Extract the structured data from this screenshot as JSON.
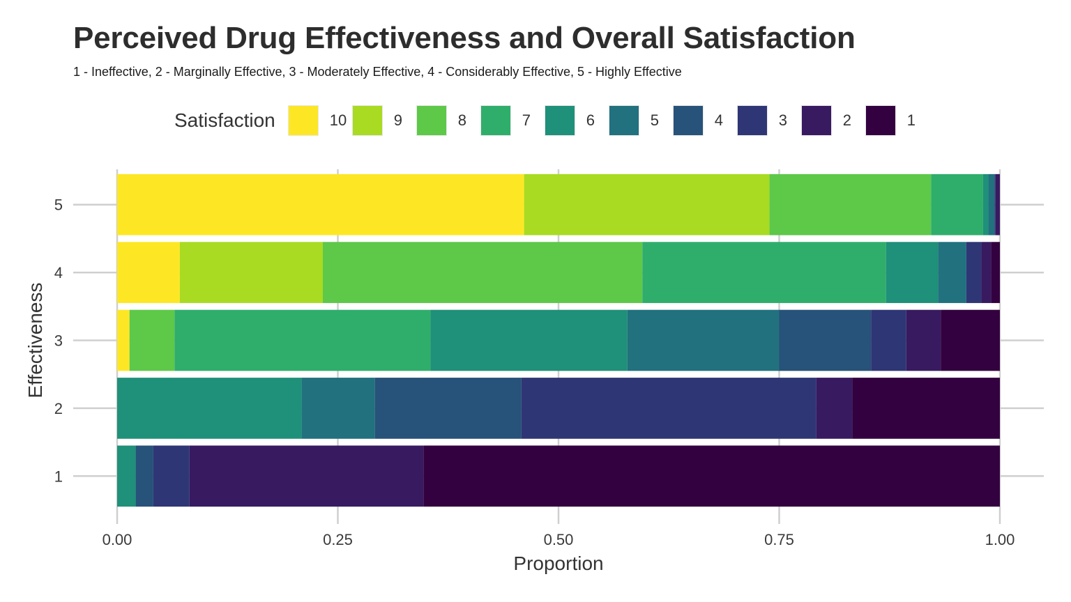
{
  "chart_data": {
    "type": "bar",
    "orientation": "horizontal",
    "stacked": "proportion",
    "title": "Perceived Drug Effectiveness and Overall Satisfaction",
    "subtitle": "1 - Ineffective, 2 - Marginally Effective, 3 - Moderately Effective, 4 - Considerably Effective, 5 - Highly Effective",
    "xlabel": "Proportion",
    "ylabel": "Effectiveness",
    "xlim": [
      0,
      1
    ],
    "x_ticks": [
      "0.00",
      "0.25",
      "0.50",
      "0.75",
      "1.00"
    ],
    "categories": [
      "5",
      "4",
      "3",
      "2",
      "1"
    ],
    "legend_title": "Satisfaction",
    "legend_position": "top",
    "grid": true,
    "series": [
      {
        "name": "10",
        "color": "#FDE725",
        "values": [
          0.461,
          0.071,
          0.014,
          0.0,
          0.0
        ]
      },
      {
        "name": "9",
        "color": "#A8DB22",
        "values": [
          0.278,
          0.162,
          0.0,
          0.0,
          0.0
        ]
      },
      {
        "name": "8",
        "color": "#5EC849",
        "values": [
          0.183,
          0.362,
          0.051,
          0.0,
          0.0
        ]
      },
      {
        "name": "7",
        "color": "#2FAE6B",
        "values": [
          0.059,
          0.276,
          0.29,
          0.0,
          0.0
        ]
      },
      {
        "name": "6",
        "color": "#1F9079",
        "values": [
          0.006,
          0.059,
          0.223,
          0.209,
          0.021
        ]
      },
      {
        "name": "5",
        "color": "#21717F",
        "values": [
          0.007,
          0.032,
          0.172,
          0.083,
          0.0
        ]
      },
      {
        "name": "4",
        "color": "#275279",
        "values": [
          0.0,
          0.0,
          0.104,
          0.166,
          0.02
        ]
      },
      {
        "name": "3",
        "color": "#2F3675",
        "values": [
          0.001,
          0.017,
          0.04,
          0.334,
          0.041
        ]
      },
      {
        "name": "2",
        "color": "#381A61",
        "values": [
          0.005,
          0.011,
          0.039,
          0.041,
          0.265
        ]
      },
      {
        "name": "1",
        "color": "#33013F",
        "values": [
          0.0,
          0.01,
          0.067,
          0.167,
          0.653
        ]
      }
    ]
  }
}
